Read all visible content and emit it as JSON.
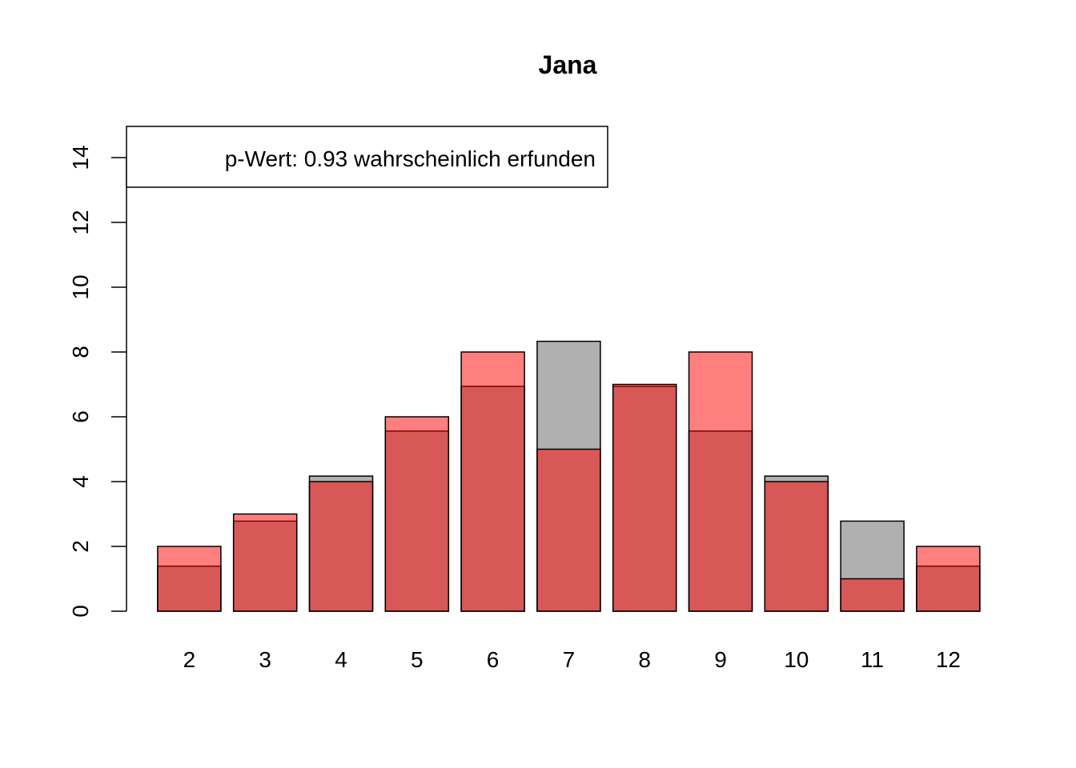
{
  "chart_data": {
    "type": "bar",
    "title": "Jana",
    "xlabel": "",
    "ylabel": "",
    "categories": [
      "2",
      "3",
      "4",
      "5",
      "6",
      "7",
      "8",
      "9",
      "10",
      "11",
      "12"
    ],
    "series": [
      {
        "values": [
          1.39,
          2.78,
          4.17,
          5.56,
          6.94,
          8.33,
          6.94,
          5.56,
          4.17,
          2.78,
          1.39
        ],
        "color": "#b0b0b0"
      },
      {
        "values": [
          2,
          3,
          4,
          6,
          8,
          5,
          7,
          8,
          4,
          1,
          2
        ],
        "color": "rgba(255,0,0,0.5)"
      }
    ],
    "ylim": [
      0,
      15
    ],
    "yticks": [
      0,
      2,
      4,
      6,
      8,
      10,
      12,
      14
    ],
    "grid": false,
    "legend": {
      "text": "p-Wert: 0.93 wahrscheinlich erfunden",
      "position": "top-left"
    }
  }
}
